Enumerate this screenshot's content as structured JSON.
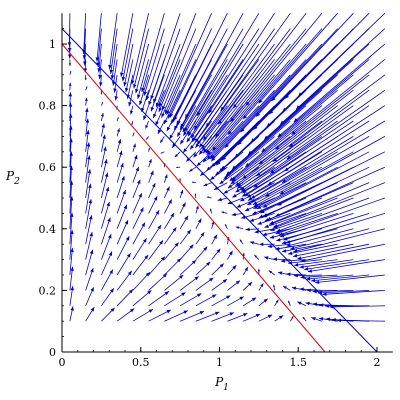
{
  "chart_data": {
    "type": "direction-field",
    "xlabel": "P",
    "xlabel_sub": "1",
    "ylabel": "P",
    "ylabel_sub": "2",
    "xlim": [
      0,
      2.1
    ],
    "ylim": [
      0,
      1.1
    ],
    "x_ticks": [
      0,
      0.5,
      1,
      1.5,
      2
    ],
    "x_tick_labels": [
      "0",
      "0.5",
      "1",
      "1.5",
      "2"
    ],
    "y_ticks": [
      0,
      0.2,
      0.4,
      0.6,
      0.8,
      1
    ],
    "y_tick_labels": [
      "0",
      "0.2",
      "0.4",
      "0.6",
      "0.8",
      "1"
    ],
    "grid": false,
    "colors": {
      "arrows": "#0000cc",
      "nullcline_red": "#dd0000",
      "nullcline_blue": "#0000cc",
      "axes": "#000000"
    },
    "lines": [
      {
        "color": "red",
        "from": [
          0,
          1.0
        ],
        "to": [
          1.67,
          0
        ]
      },
      {
        "color": "blue",
        "from": [
          0,
          1.05
        ],
        "to": [
          2.0,
          0
        ]
      }
    ],
    "field_grid": {
      "x_start": 0.05,
      "x_end": 2.05,
      "y_start": 0.1,
      "y_end": 1.1,
      "steps": 21
    }
  }
}
